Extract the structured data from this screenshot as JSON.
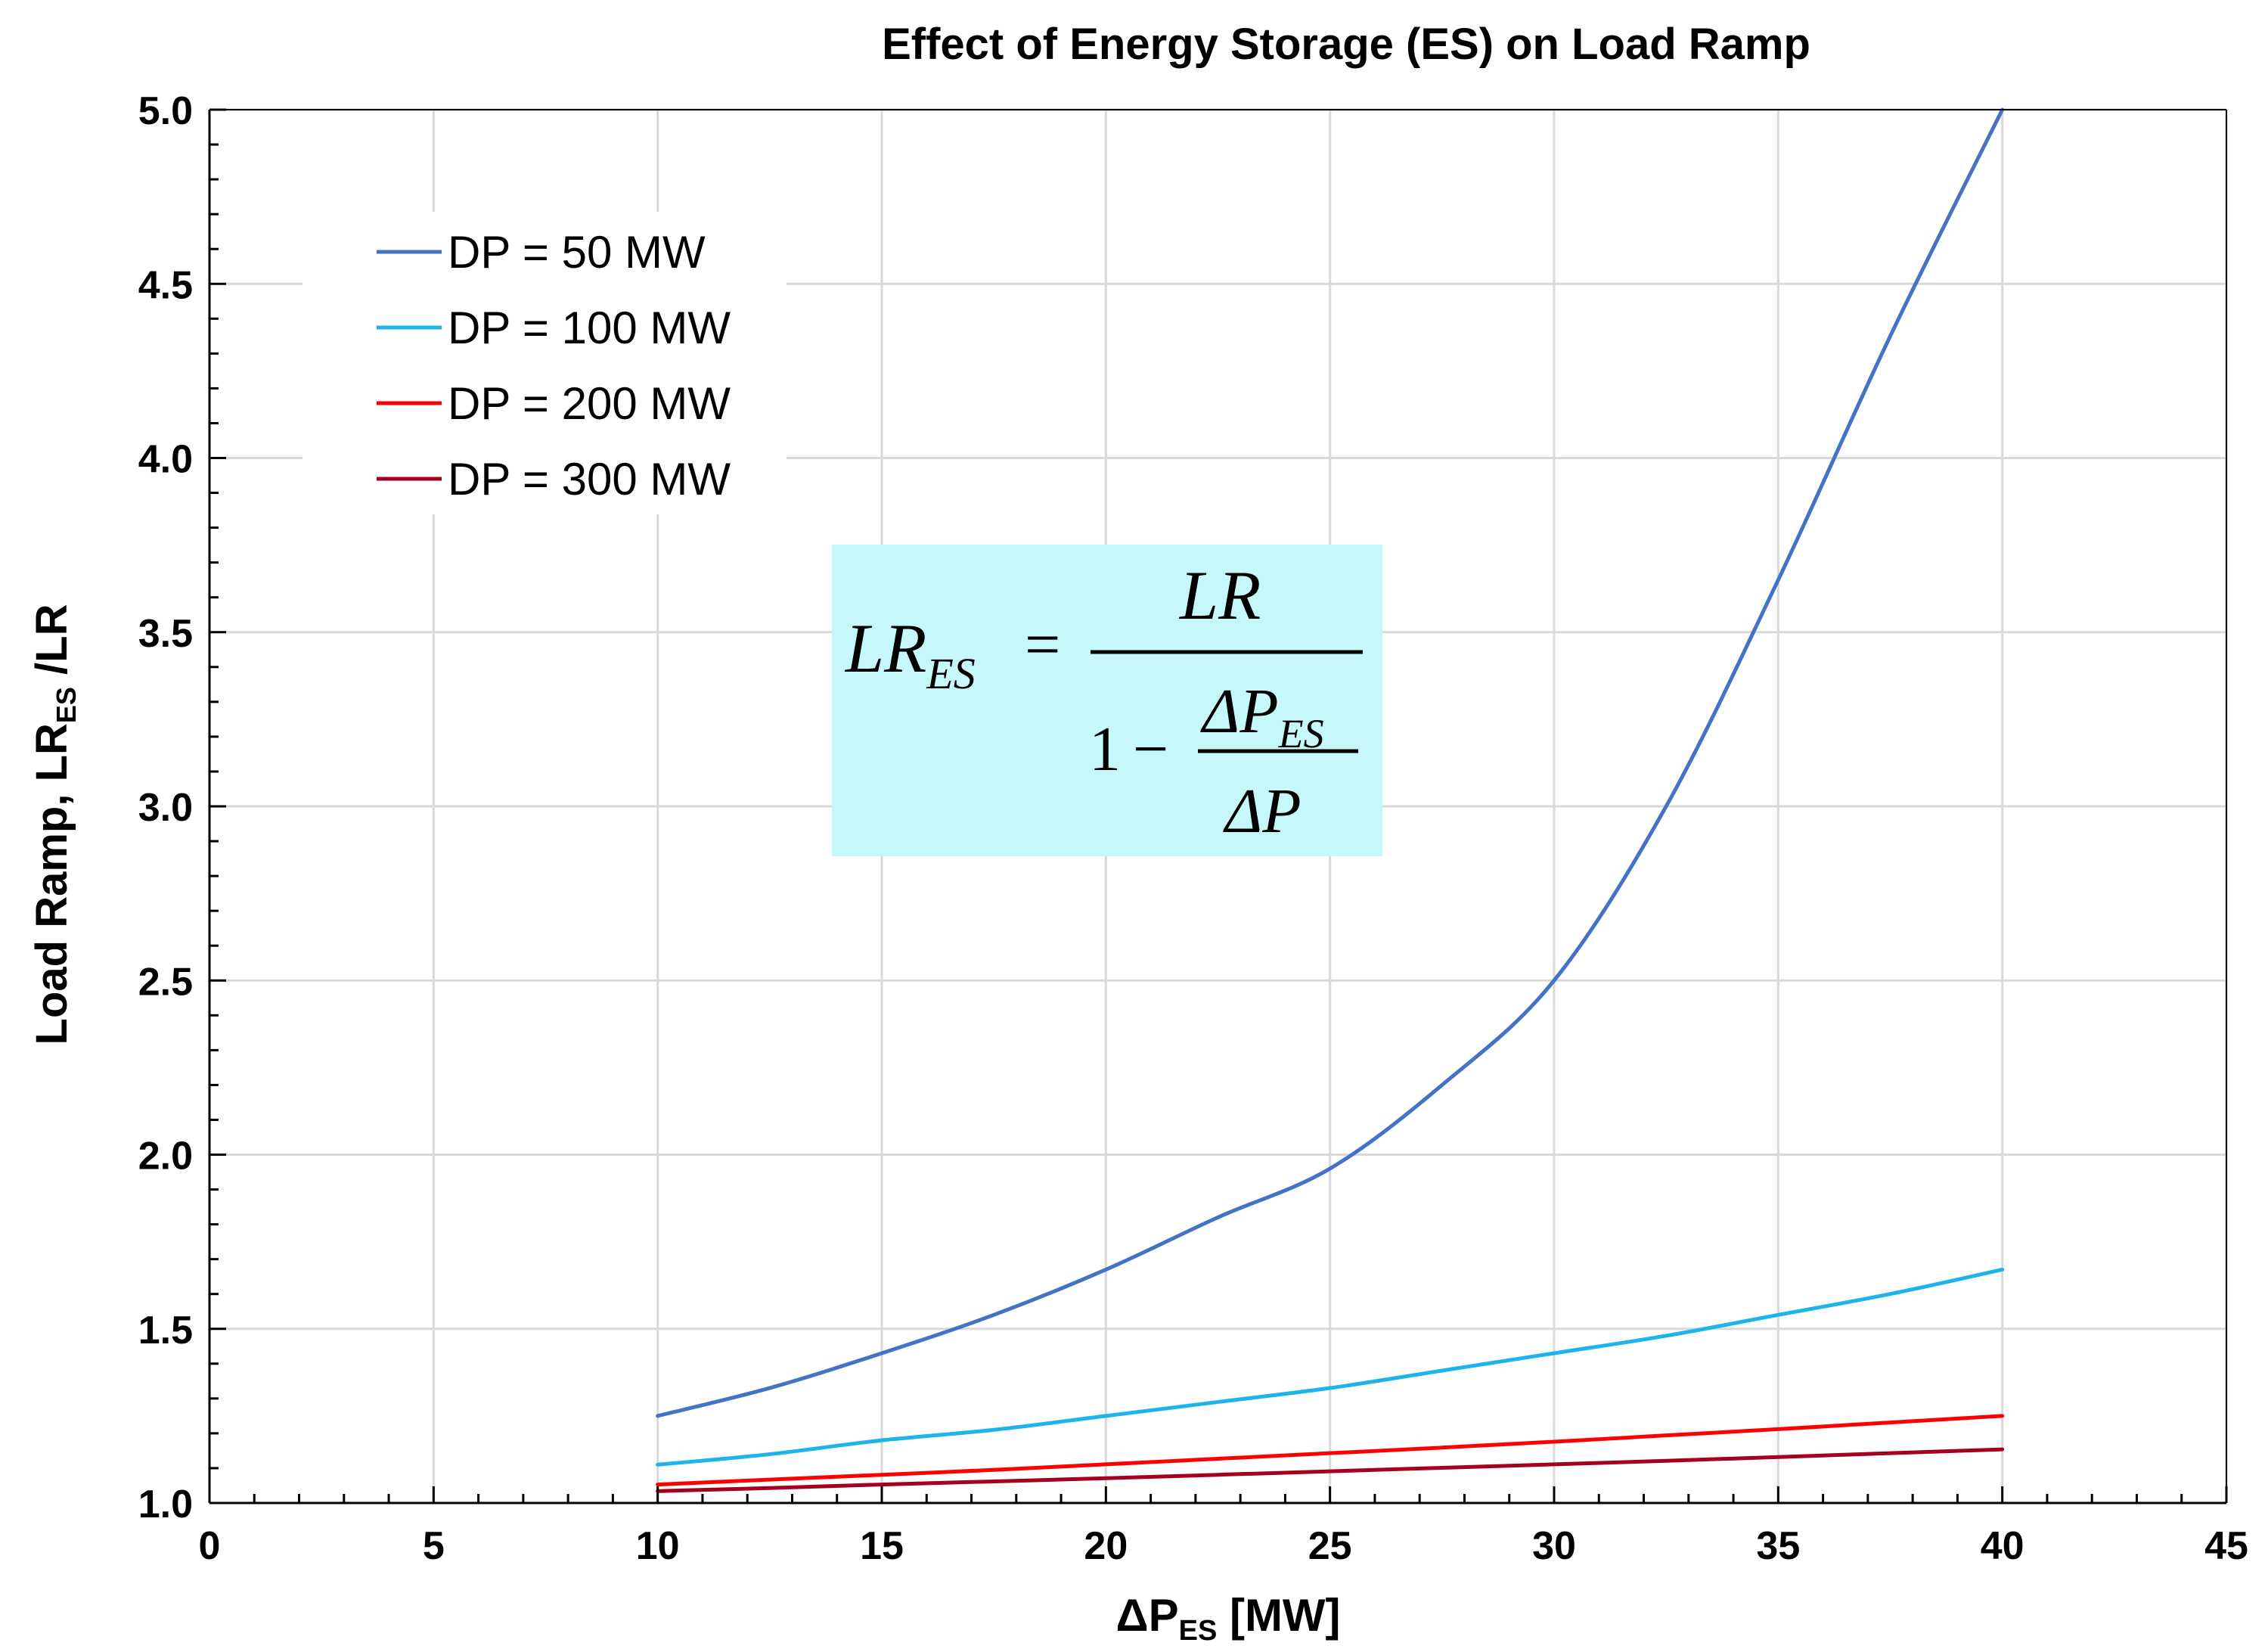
{
  "chart_data": {
    "type": "line",
    "title": "Effect of Energy Storage (ES) on Load Ramp",
    "xlabel": {
      "main": "ΔP",
      "sub": "ES",
      "unit": " [MW]"
    },
    "ylabel": {
      "main": "Load Ramp, LR",
      "sub": "ES",
      "tail": " /LR"
    },
    "xlim": [
      0,
      45
    ],
    "ylim": [
      1.0,
      5.0
    ],
    "x_ticks": [
      "0",
      "5",
      "10",
      "15",
      "20",
      "25",
      "30",
      "35",
      "40",
      "45"
    ],
    "y_ticks": [
      "1.0",
      "1.5",
      "2.0",
      "2.5",
      "3.0",
      "3.5",
      "4.0",
      "4.5",
      "5.0"
    ],
    "grid": true,
    "legend_position": "top-left",
    "x": [
      10,
      12.5,
      15,
      17.5,
      20,
      22.5,
      25,
      27.5,
      30,
      32.5,
      35,
      37.5,
      40
    ],
    "series": [
      {
        "name": "DP = 50 MW",
        "color": "#4472C4",
        "values": [
          1.25,
          1.33,
          1.43,
          1.54,
          1.67,
          1.82,
          1.96,
          2.2,
          2.5,
          3.0,
          3.65,
          4.35,
          5.0
        ]
      },
      {
        "name": "DP = 100 MW",
        "color": "#1EB4EA",
        "values": [
          1.11,
          1.14,
          1.18,
          1.21,
          1.25,
          1.29,
          1.33,
          1.38,
          1.43,
          1.48,
          1.54,
          1.6,
          1.67
        ]
      },
      {
        "name": "DP = 200 MW",
        "color": "#FF0000",
        "values": [
          1.053,
          1.067,
          1.081,
          1.095,
          1.111,
          1.127,
          1.143,
          1.159,
          1.176,
          1.194,
          1.212,
          1.231,
          1.25
        ]
      },
      {
        "name": "DP = 300 MW",
        "color": "#A50021",
        "values": [
          1.034,
          1.043,
          1.053,
          1.062,
          1.071,
          1.081,
          1.091,
          1.101,
          1.111,
          1.121,
          1.132,
          1.143,
          1.154
        ]
      }
    ],
    "annotation": {
      "background": "#C6F7FB",
      "lhs_main": "LR",
      "lhs_sub": "ES",
      "equals": "=",
      "numerator": "LR",
      "one": "1",
      "minus": "−",
      "inner_num_main": "ΔP",
      "inner_num_sub": "ES",
      "inner_den": "ΔP"
    }
  }
}
